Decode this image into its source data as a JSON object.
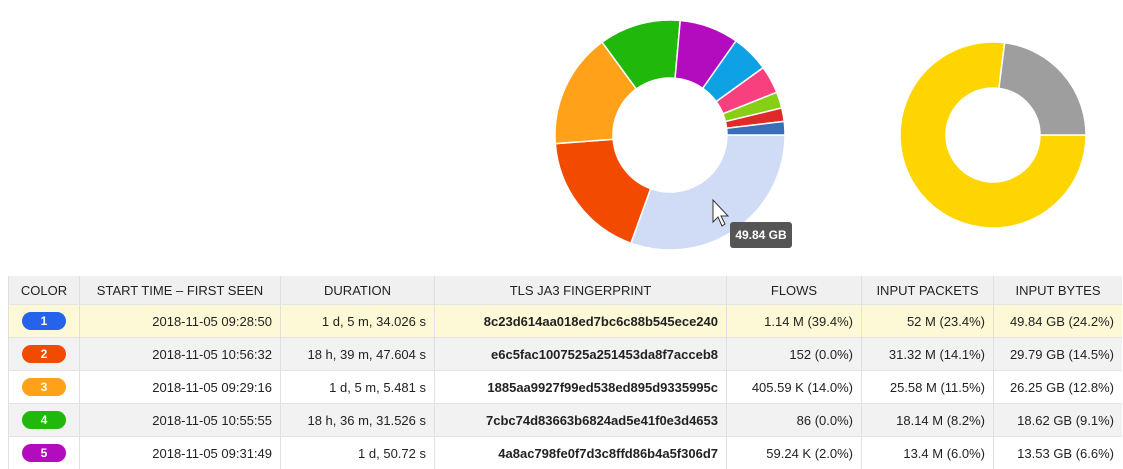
{
  "chart_data": [
    {
      "type": "donut",
      "values": [
        24.2,
        14.5,
        12.8,
        9.1,
        6.6,
        4.2,
        3.1,
        1.8,
        1.5,
        1.5
      ],
      "colors": [
        "#d0dcf6",
        "#f24a00",
        "#ffa21a",
        "#1fb80b",
        "#b20cbe",
        "#0ea2e4",
        "#f7407d",
        "#86cf15",
        "#e02a2a",
        "#3a6fb8"
      ]
    },
    {
      "type": "donut",
      "values": [
        77,
        23
      ],
      "colors": [
        "#ffd500",
        "#9e9e9e"
      ]
    }
  ],
  "tooltip": "49.84 GB",
  "table": {
    "columns": [
      "COLOR",
      "START TIME – FIRST SEEN",
      "DURATION",
      "TLS JA3 FINGERPRINT",
      "FLOWS",
      "INPUT PACKETS",
      "INPUT BYTES"
    ],
    "badge_colors": [
      "#2563eb",
      "#f24a00",
      "#ffa21a",
      "#1fb80b",
      "#b20cbe"
    ],
    "rows": [
      [
        "1",
        "2018-11-05 09:28:50",
        "1 d, 5 m, 34.026 s",
        "8c23d614aa018ed7bc6c88b545ece240",
        "1.14 M (39.4%)",
        "52 M (23.4%)",
        "49.84 GB (24.2%)"
      ],
      [
        "2",
        "2018-11-05 10:56:32",
        "18 h, 39 m, 47.604 s",
        "e6c5fac1007525a251453da8f7acceb8",
        "152 (0.0%)",
        "31.32 M (14.1%)",
        "29.79 GB (14.5%)"
      ],
      [
        "3",
        "2018-11-05 09:29:16",
        "1 d, 5 m, 5.481 s",
        "1885aa9927f99ed538ed895d9335995c",
        "405.59 K (14.0%)",
        "25.58 M (11.5%)",
        "26.25 GB (12.8%)"
      ],
      [
        "4",
        "2018-11-05 10:55:55",
        "18 h, 36 m, 31.526 s",
        "7cbc74d83663b6824ad5e41f0e3d4653",
        "86 (0.0%)",
        "18.14 M (8.2%)",
        "18.62 GB (9.1%)"
      ],
      [
        "5",
        "2018-11-05 09:31:49",
        "1 d, 50.72 s",
        "4a8ac798fe0f7d3c8ffd86b4a5f306d7",
        "59.24 K (2.0%)",
        "13.4 M (6.0%)",
        "13.53 GB (6.6%)"
      ]
    ]
  }
}
